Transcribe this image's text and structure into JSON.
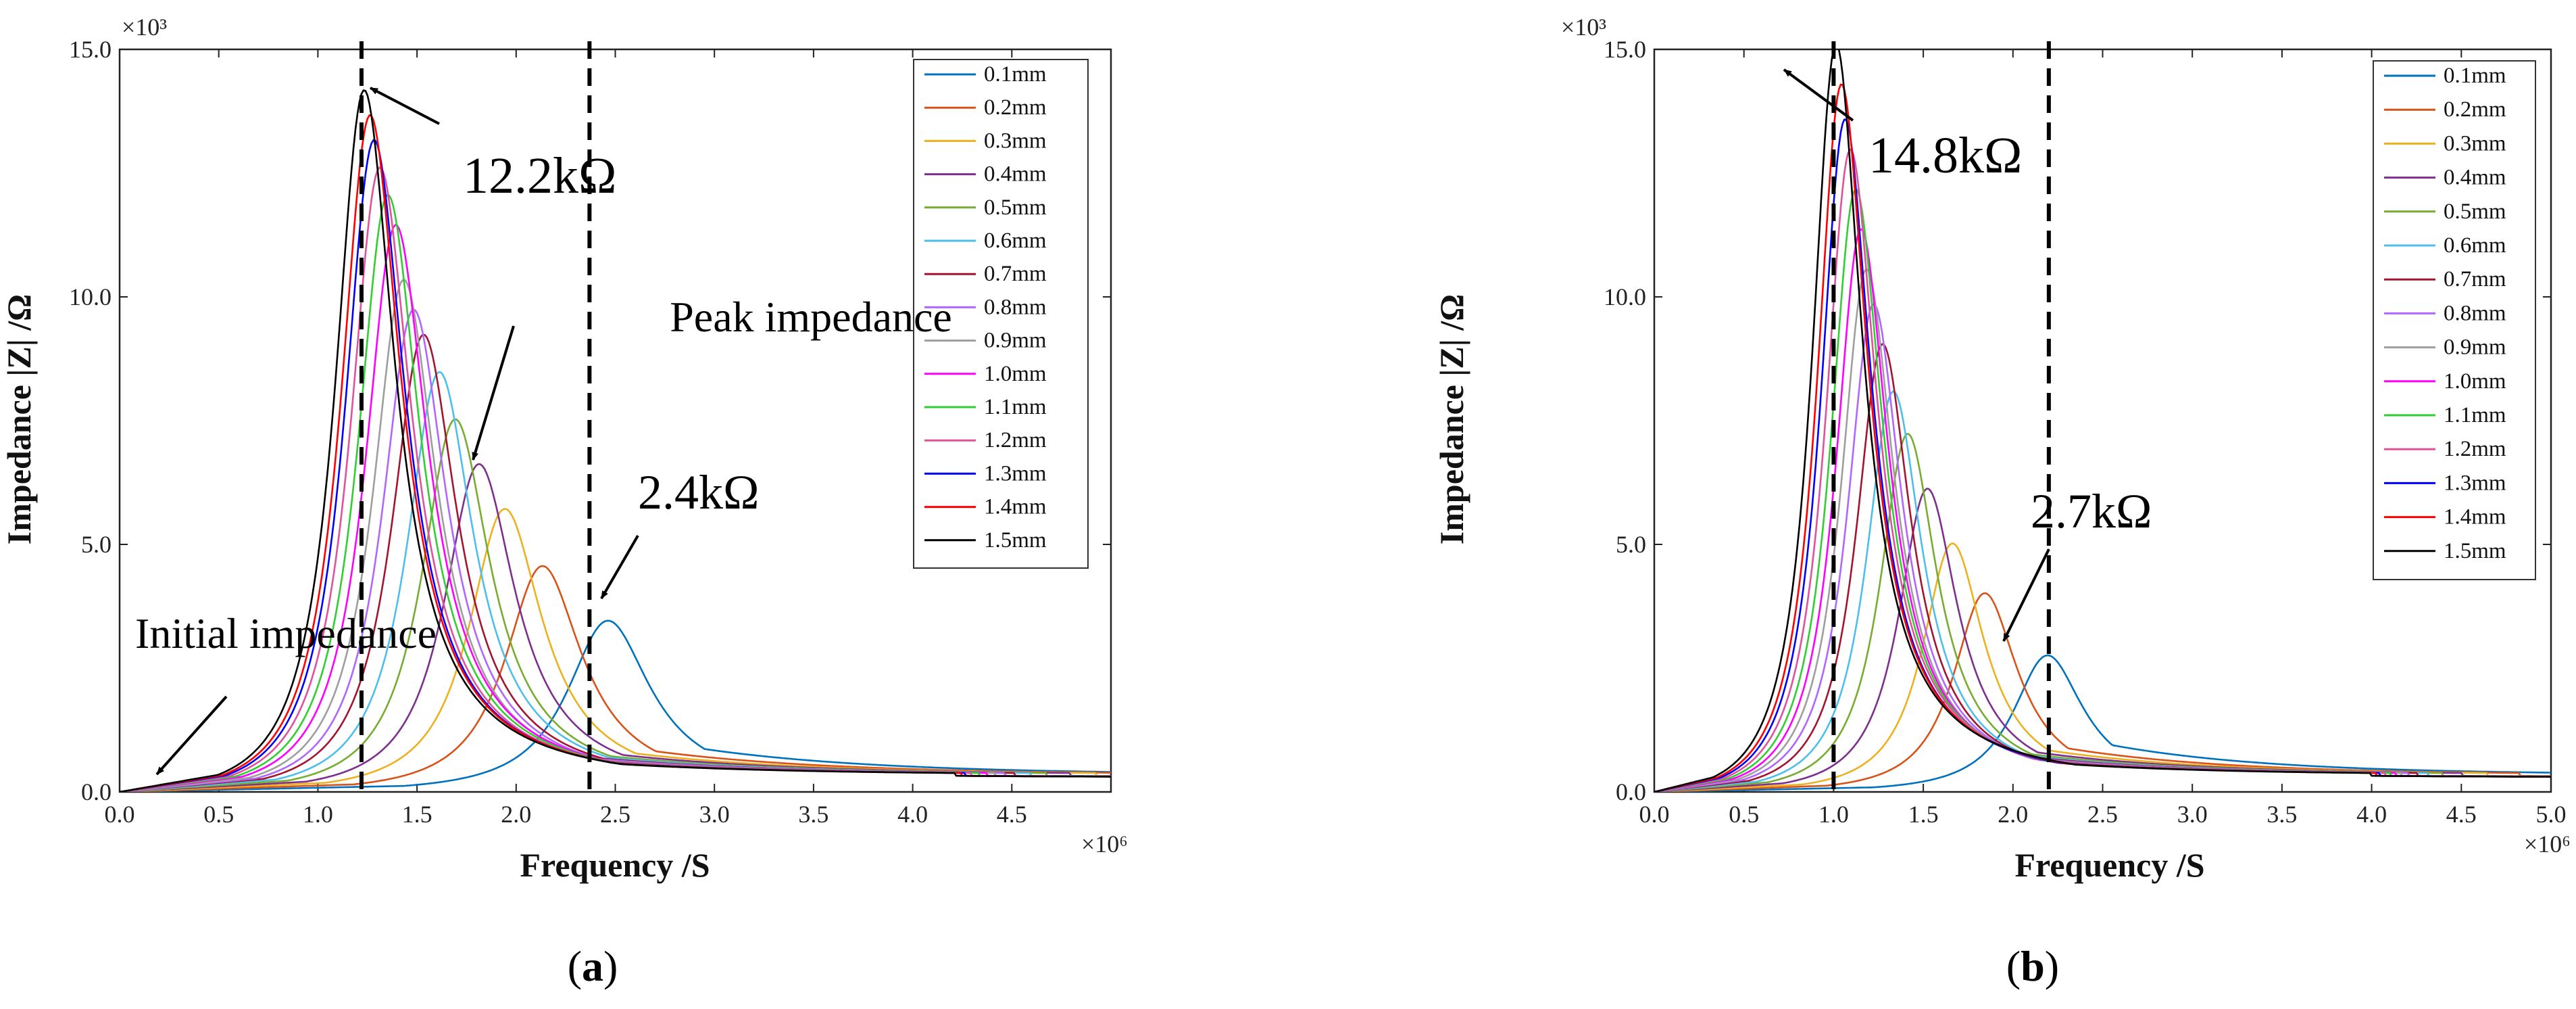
{
  "chart_data": [
    {
      "type": "line",
      "panel_label": "(a)",
      "xlabel": "Frequency /S",
      "ylabel": "Impedance |Z| /Ω",
      "x_multiplier": "×10⁶",
      "y_multiplier": "×10³",
      "xlim": [
        0,
        5
      ],
      "ylim": [
        0,
        15
      ],
      "xticks": [
        "0.0",
        "0.5",
        "1.0",
        "1.5",
        "2.0",
        "2.5",
        "3.0",
        "3.5",
        "4.0",
        "4.5"
      ],
      "yticks": [
        "0.0",
        "5.0",
        "10.0",
        "15.0"
      ],
      "dashed_lines_x": [
        1.22,
        2.37
      ],
      "series": [
        {
          "name": "0.1mm",
          "peak_x": 2.45,
          "peak_y": 3.45,
          "color": "#0072BD"
        },
        {
          "name": "0.2mm",
          "peak_x": 2.12,
          "peak_y": 4.55,
          "color": "#D95319"
        },
        {
          "name": "0.3mm",
          "peak_x": 1.93,
          "peak_y": 5.7,
          "color": "#EDB120"
        },
        {
          "name": "0.4mm",
          "peak_x": 1.8,
          "peak_y": 6.6,
          "color": "#7E2F8E"
        },
        {
          "name": "0.5mm",
          "peak_x": 1.68,
          "peak_y": 7.5,
          "color": "#77AC30"
        },
        {
          "name": "0.6mm",
          "peak_x": 1.6,
          "peak_y": 8.45,
          "color": "#4DBEEE"
        },
        {
          "name": "0.7mm",
          "peak_x": 1.52,
          "peak_y": 9.2,
          "color": "#A2142F"
        },
        {
          "name": "0.8mm",
          "peak_x": 1.47,
          "peak_y": 9.7,
          "color": "#B066FF"
        },
        {
          "name": "0.9mm",
          "peak_x": 1.42,
          "peak_y": 10.3,
          "color": "#9E9E9E"
        },
        {
          "name": "1.0mm",
          "peak_x": 1.38,
          "peak_y": 11.4,
          "color": "#FF00FF"
        },
        {
          "name": "1.1mm",
          "peak_x": 1.34,
          "peak_y": 12.0,
          "color": "#32CD32"
        },
        {
          "name": "1.2mm",
          "peak_x": 1.3,
          "peak_y": 12.55,
          "color": "#E0529C"
        },
        {
          "name": "1.3mm",
          "peak_x": 1.27,
          "peak_y": 13.1,
          "color": "#0000FF"
        },
        {
          "name": "1.4mm",
          "peak_x": 1.25,
          "peak_y": 13.6,
          "color": "#FF0000"
        },
        {
          "name": "1.5mm",
          "peak_x": 1.22,
          "peak_y": 14.1,
          "color": "#000000"
        }
      ],
      "annotations": [
        {
          "text": "12.2kΩ"
        },
        {
          "text": "Peak impedance"
        },
        {
          "text": "2.4kΩ"
        },
        {
          "text": "Initial impedance"
        }
      ]
    },
    {
      "type": "line",
      "panel_label": "(b)",
      "xlabel": "Frequency /S",
      "ylabel": "Impedance |Z| /Ω",
      "x_multiplier": "×10⁶",
      "y_multiplier": "×10³",
      "xlim": [
        0,
        5
      ],
      "ylim": [
        0,
        15
      ],
      "xticks": [
        "0.0",
        "0.5",
        "1.0",
        "1.5",
        "2.0",
        "2.5",
        "3.0",
        "3.5",
        "4.0",
        "4.5",
        "5.0"
      ],
      "yticks": [
        "0.0",
        "5.0",
        "10.0",
        "15.0"
      ],
      "dashed_lines_x": [
        1.0,
        2.2
      ],
      "series": [
        {
          "name": "0.1mm",
          "peak_x": 2.18,
          "peak_y": 2.75,
          "color": "#0072BD"
        },
        {
          "name": "0.2mm",
          "peak_x": 1.83,
          "peak_y": 4.0,
          "color": "#D95319"
        },
        {
          "name": "0.3mm",
          "peak_x": 1.65,
          "peak_y": 5.0,
          "color": "#EDB120"
        },
        {
          "name": "0.4mm",
          "peak_x": 1.51,
          "peak_y": 6.1,
          "color": "#7E2F8E"
        },
        {
          "name": "0.5mm",
          "peak_x": 1.4,
          "peak_y": 7.2,
          "color": "#77AC30"
        },
        {
          "name": "0.6mm",
          "peak_x": 1.32,
          "peak_y": 8.05,
          "color": "#4DBEEE"
        },
        {
          "name": "0.7mm",
          "peak_x": 1.26,
          "peak_y": 9.0,
          "color": "#A2142F"
        },
        {
          "name": "0.8mm",
          "peak_x": 1.21,
          "peak_y": 9.8,
          "color": "#B066FF"
        },
        {
          "name": "0.9mm",
          "peak_x": 1.17,
          "peak_y": 10.5,
          "color": "#9E9E9E"
        },
        {
          "name": "1.0mm",
          "peak_x": 1.14,
          "peak_y": 11.3,
          "color": "#FF00FF"
        },
        {
          "name": "1.1mm",
          "peak_x": 1.11,
          "peak_y": 12.1,
          "color": "#32CD32"
        },
        {
          "name": "1.2mm",
          "peak_x": 1.08,
          "peak_y": 12.9,
          "color": "#E0529C"
        },
        {
          "name": "1.3mm",
          "peak_x": 1.05,
          "peak_y": 13.5,
          "color": "#0000FF"
        },
        {
          "name": "1.4mm",
          "peak_x": 1.03,
          "peak_y": 14.2,
          "color": "#FF0000"
        },
        {
          "name": "1.5mm",
          "peak_x": 1.0,
          "peak_y": 15.0,
          "color": "#000000"
        }
      ],
      "annotations": [
        {
          "text": "14.8kΩ"
        },
        {
          "text": "2.7kΩ"
        }
      ]
    }
  ]
}
